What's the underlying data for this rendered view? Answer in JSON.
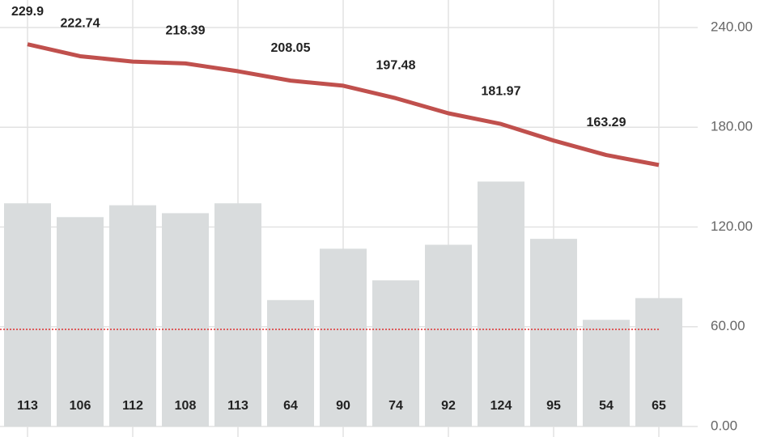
{
  "chart_data": {
    "type": "bar-line",
    "series": [
      {
        "type": "bar",
        "axis": "y2",
        "color": "#d9dcdd",
        "values": [
          113,
          106,
          112,
          108,
          113,
          64,
          90,
          74,
          92,
          124,
          95,
          54,
          65
        ]
      },
      {
        "type": "line",
        "axis": "y",
        "color": "#c0504d",
        "values": [
          229.9,
          222.74,
          219.5,
          218.39,
          213.7,
          208.05,
          205,
          197.48,
          188.4,
          181.97,
          172,
          163.29,
          157.3
        ],
        "value_labels": [
          "229.9",
          "222.74",
          null,
          "218.39",
          null,
          "208.05",
          null,
          "197.48",
          null,
          "181.97",
          null,
          "163.29",
          null
        ]
      }
    ],
    "ylim": [
      0,
      240
    ],
    "yticks": [
      {
        "value": 0,
        "label": "0.00"
      },
      {
        "value": 60,
        "label": "60.00"
      },
      {
        "value": 120,
        "label": "120.00"
      },
      {
        "value": 180,
        "label": "180.00"
      },
      {
        "value": 240,
        "label": "240.00"
      }
    ],
    "y2lim": [
      0,
      202
    ],
    "reference_line": {
      "value": 58.4,
      "color": "#e03030"
    },
    "grid": true
  }
}
